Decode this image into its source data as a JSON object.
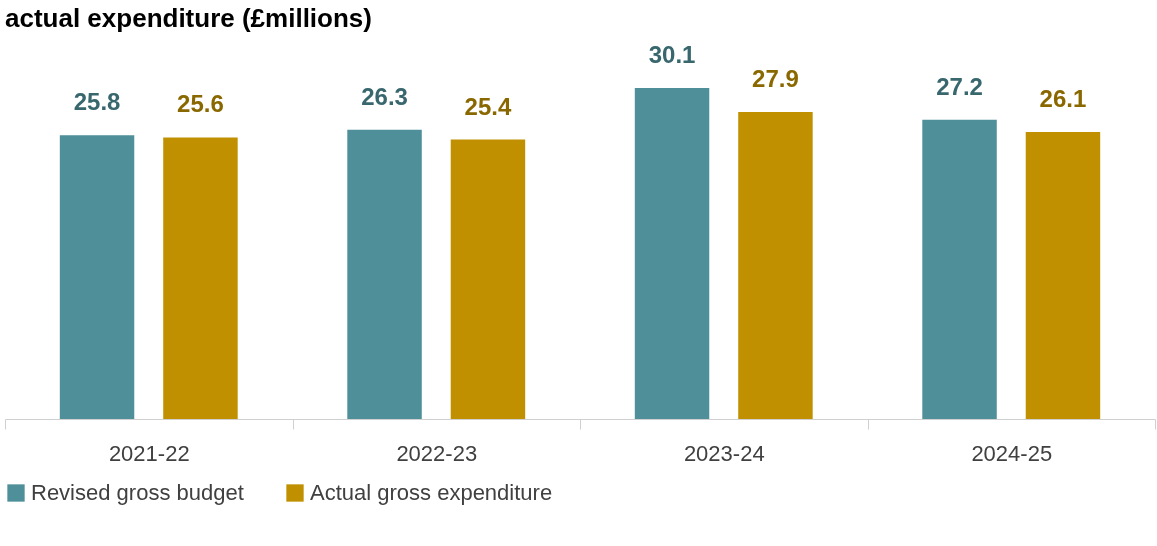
{
  "chart_data": {
    "type": "bar",
    "title": "actual expenditure (£millions)",
    "categories": [
      "2021-22",
      "2022-23",
      "2023-24",
      "2024-25"
    ],
    "series": [
      {
        "name": "Revised gross budget",
        "color": "#4e8f99",
        "values": [
          25.8,
          26.3,
          30.1,
          27.2
        ]
      },
      {
        "name": "Actual gross expenditure",
        "color": "#c09000",
        "values": [
          25.6,
          25.4,
          27.9,
          26.1
        ]
      }
    ],
    "data_labels": true,
    "legend": "bottom",
    "grid": false,
    "tick_labels": "x"
  }
}
